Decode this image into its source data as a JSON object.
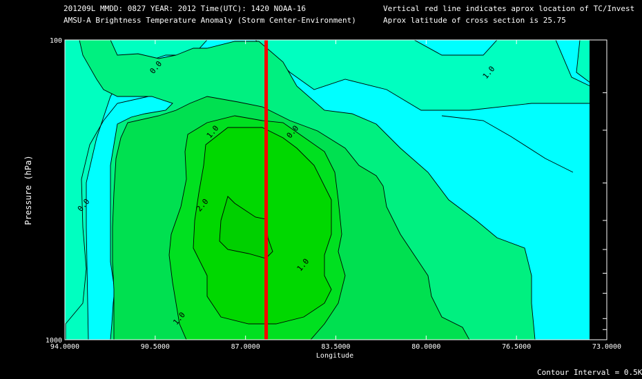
{
  "header": {
    "line1_left": "201209L  MMDD: 0827 YEAR: 2012 Time(UTC): 1420 NOAA-16",
    "line2_left": "AMSU-A Brightness Temperature Anomaly (Storm Center-Environment)",
    "line1_right": "Vertical red line indicates aprox location of TC/Invest",
    "line2_right": "Aprox latitude of cross section is 25.75"
  },
  "footer": {
    "contour_interval": "Contour Interval = 0.5K"
  },
  "colors": {
    "background": "#000000",
    "cyan": "#00ffff",
    "band_0_to_05": "#00ffc0",
    "band_05_to_1": "#00f080",
    "band_1_to_15": "#00e050",
    "band_15_to_2": "#00e020",
    "band_above_2": "#00d800",
    "tc_line": "#ff0000"
  },
  "chart_data": {
    "type": "heatmap",
    "subtype": "contour",
    "title": "AMSU-A Brightness Temperature Anomaly (Storm Center-Environment)",
    "xlabel": "Longitude",
    "ylabel": "Pressure (hPa)",
    "x_axis": {
      "reversed": true,
      "range": [
        94.0,
        73.0
      ],
      "ticks": [
        "94.0000",
        "90.5000",
        "87.0000",
        "83.5000",
        "80.0000",
        "76.5000",
        "73.0000"
      ]
    },
    "y_axis": {
      "scale": "log",
      "range": [
        1000,
        100
      ],
      "ticks": [
        "100",
        "1000"
      ],
      "minor_ticks_hPa": [
        150,
        200,
        300,
        400,
        500,
        600,
        700,
        850,
        925
      ]
    },
    "contour_interval_K": 0.5,
    "contour_labels": [
      {
        "text": "0.0",
        "lon": 90.4,
        "p": 125
      },
      {
        "text": "0.0",
        "lon": 93.2,
        "p": 360
      },
      {
        "text": "0.0",
        "lon": 85.1,
        "p": 205
      },
      {
        "text": "1.0",
        "lon": 88.2,
        "p": 205
      },
      {
        "text": "1.0",
        "lon": 77.5,
        "p": 130
      },
      {
        "text": "2.0",
        "lon": 88.6,
        "p": 360
      },
      {
        "text": "1.0",
        "lon": 84.7,
        "p": 570
      },
      {
        "text": "1.0",
        "lon": 89.5,
        "p": 860
      }
    ],
    "tc_longitude": 86.2,
    "cross_section_latitude": 25.75
  }
}
